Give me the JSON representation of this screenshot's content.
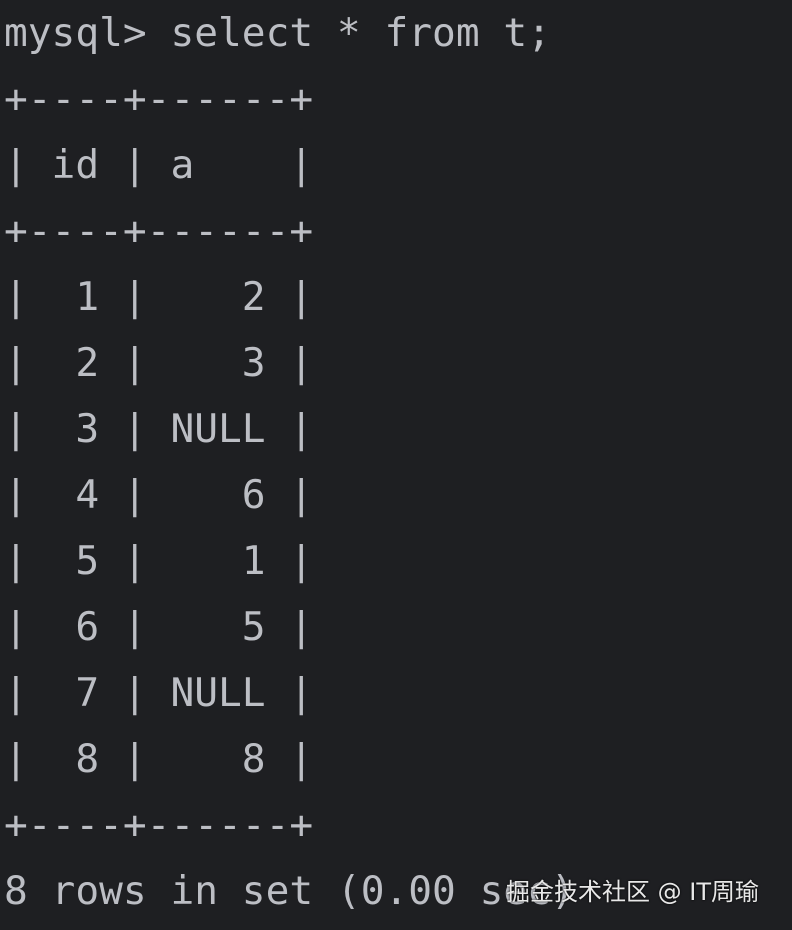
{
  "terminal": {
    "prompt": "mysql>",
    "command": "select * from t;",
    "border": "+----+------+",
    "header": "| id | a    |",
    "rows": [
      "|  1 |    2 |",
      "|  2 |    3 |",
      "|  3 | NULL |",
      "|  4 |    6 |",
      "|  5 |    1 |",
      "|  6 |    5 |",
      "|  7 | NULL |",
      "|  8 |    8 |"
    ],
    "footer": "8 rows in set (0.00 sec)"
  },
  "watermark": "掘金技术社区 @ IT周瑜",
  "colors": {
    "background": "#1e1f22",
    "text": "#bcbec4"
  }
}
